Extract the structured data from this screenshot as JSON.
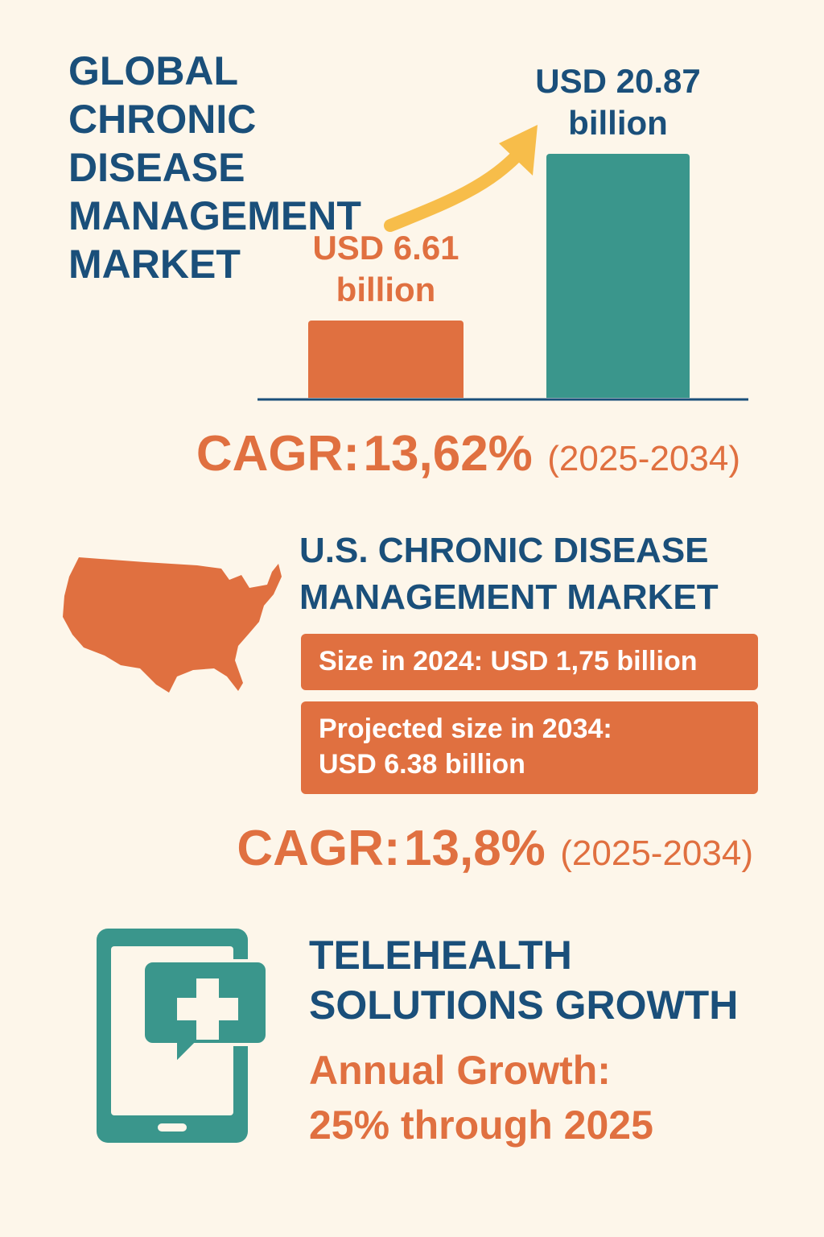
{
  "chart_data": {
    "type": "bar",
    "title": "GLOBAL CHRONIC DISEASE MANAGEMENT MARKET",
    "categories": [
      null,
      null
    ],
    "values": [
      6.61,
      20.87
    ],
    "value_labels": [
      "USD 6.61 billion",
      "USD 20.87 billion"
    ],
    "colors": [
      "#e07040",
      "#3a968c"
    ],
    "label_colors": [
      "#e07040",
      "#1a4f7a"
    ]
  },
  "global_cagr": {
    "label": "CAGR:",
    "value": "13,62%",
    "period": "(2025-2034)"
  },
  "us": {
    "title": "U.S. CHRONIC DISEASE MANAGEMENT MARKET",
    "boxes": [
      "Size in 2024: USD 1,75 billion",
      "Projected size in 2034: USD 6.38 billion"
    ],
    "cagr": {
      "label": "CAGR:",
      "value": "13,8%",
      "period": "(2025-2034)"
    }
  },
  "telehealth": {
    "title": "TELEHEALTH SOLUTIONS GROWTH",
    "text": "Annual Growth: 25% through 2025"
  }
}
